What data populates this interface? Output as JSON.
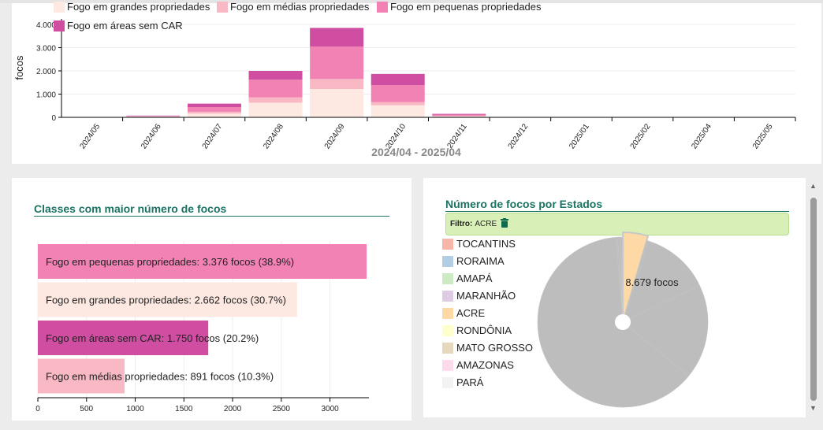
{
  "colors": {
    "grandes": "#fde9e1",
    "medias": "#f8b9c4",
    "pequenas": "#f282b4",
    "sem_car": "#cf4ea1",
    "title_green": "#1a7363"
  },
  "top_chart": {
    "legend": [
      {
        "label": "Fogo em grandes propriedades",
        "color": "#fde9e1"
      },
      {
        "label": "Fogo em médias propriedades",
        "color": "#f8b9c4"
      },
      {
        "label": "Fogo em pequenas propriedades",
        "color": "#f282b4"
      },
      {
        "label": "Fogo em áreas sem CAR",
        "color": "#cf4ea1"
      }
    ],
    "ylabel": "focos",
    "xlabel": "2024/04 - 2025/04"
  },
  "left_panel": {
    "title": "Classes com maior número de focos"
  },
  "right_panel": {
    "title": "Número de focos por Estados",
    "filter_label": "Filtro:",
    "filter_value": "ACRE",
    "trash_icon": "trash-icon",
    "center_label": "8.679 focos"
  },
  "chart_data": [
    {
      "type": "bar",
      "stacked": true,
      "categories": [
        "2024/05",
        "2024/06",
        "2024/07",
        "2024/08",
        "2024/09",
        "2024/10",
        "2024/11",
        "2024/12",
        "2025/01",
        "2025/02",
        "2025/04",
        "2025/05"
      ],
      "series": [
        {
          "name": "Fogo em grandes propriedades",
          "values": [
            0,
            30,
            160,
            630,
            1220,
            520,
            45,
            0,
            0,
            0,
            0,
            0
          ]
        },
        {
          "name": "Fogo em médias propriedades",
          "values": [
            0,
            10,
            80,
            230,
            430,
            140,
            15,
            0,
            0,
            0,
            0,
            0
          ]
        },
        {
          "name": "Fogo em pequenas propriedades",
          "values": [
            0,
            20,
            200,
            760,
            1400,
            720,
            50,
            0,
            0,
            0,
            0,
            0
          ]
        },
        {
          "name": "Fogo em áreas sem CAR",
          "values": [
            0,
            15,
            150,
            380,
            800,
            490,
            40,
            0,
            0,
            0,
            0,
            0
          ]
        }
      ],
      "yticks": [
        "0",
        "1.000",
        "2.000",
        "3.000",
        "4.000"
      ],
      "ylim": [
        0,
        4000
      ],
      "ylabel": "focos",
      "xlabel": "2024/04 - 2025/04"
    },
    {
      "type": "bar",
      "orientation": "horizontal",
      "title": "Classes com maior número de focos",
      "categories": [
        "Fogo em pequenas propriedades",
        "Fogo em grandes propriedades",
        "Fogo em áreas sem CAR",
        "Fogo em médias propriedades"
      ],
      "values": [
        3376,
        2662,
        1750,
        891
      ],
      "labels": [
        "Fogo em pequenas propriedades: 3.376 focos (38.9%)",
        "Fogo em grandes propriedades: 2.662 focos (30.7%)",
        "Fogo em áreas sem CAR: 1.750 focos (20.2%)",
        "Fogo em médias propriedades: 891 focos (10.3%)"
      ],
      "colors": [
        "#f282b4",
        "#fde9e1",
        "#cf4ea1",
        "#f8b9c4"
      ],
      "xticks": [
        0,
        500,
        1000,
        1500,
        2000,
        2500,
        3000
      ],
      "xlim": [
        0,
        3400
      ]
    },
    {
      "type": "pie",
      "title": "Número de focos por Estados",
      "labels": [
        "TOCANTINS",
        "RORAIMA",
        "AMAPÁ",
        "MARANHÃO",
        "ACRE",
        "RONDÔNIA",
        "MATO GROSSO",
        "AMAZONAS",
        "PARÁ"
      ],
      "legend_colors": [
        "#f7b6a8",
        "#b3cde3",
        "#ccebc5",
        "#decbe4",
        "#fed9a6",
        "#ffffcc",
        "#e5d8bd",
        "#fddaec",
        "#f2f2f2"
      ],
      "values": [
        0.3,
        0.3,
        0.3,
        0.4,
        4.5,
        0.4,
        13.0,
        18.0,
        62.8
      ],
      "highlighted": "ACRE",
      "highlight_color": "#fed9a6",
      "dim_color": "#bdbdbd",
      "center_label": "8.679 focos"
    }
  ]
}
